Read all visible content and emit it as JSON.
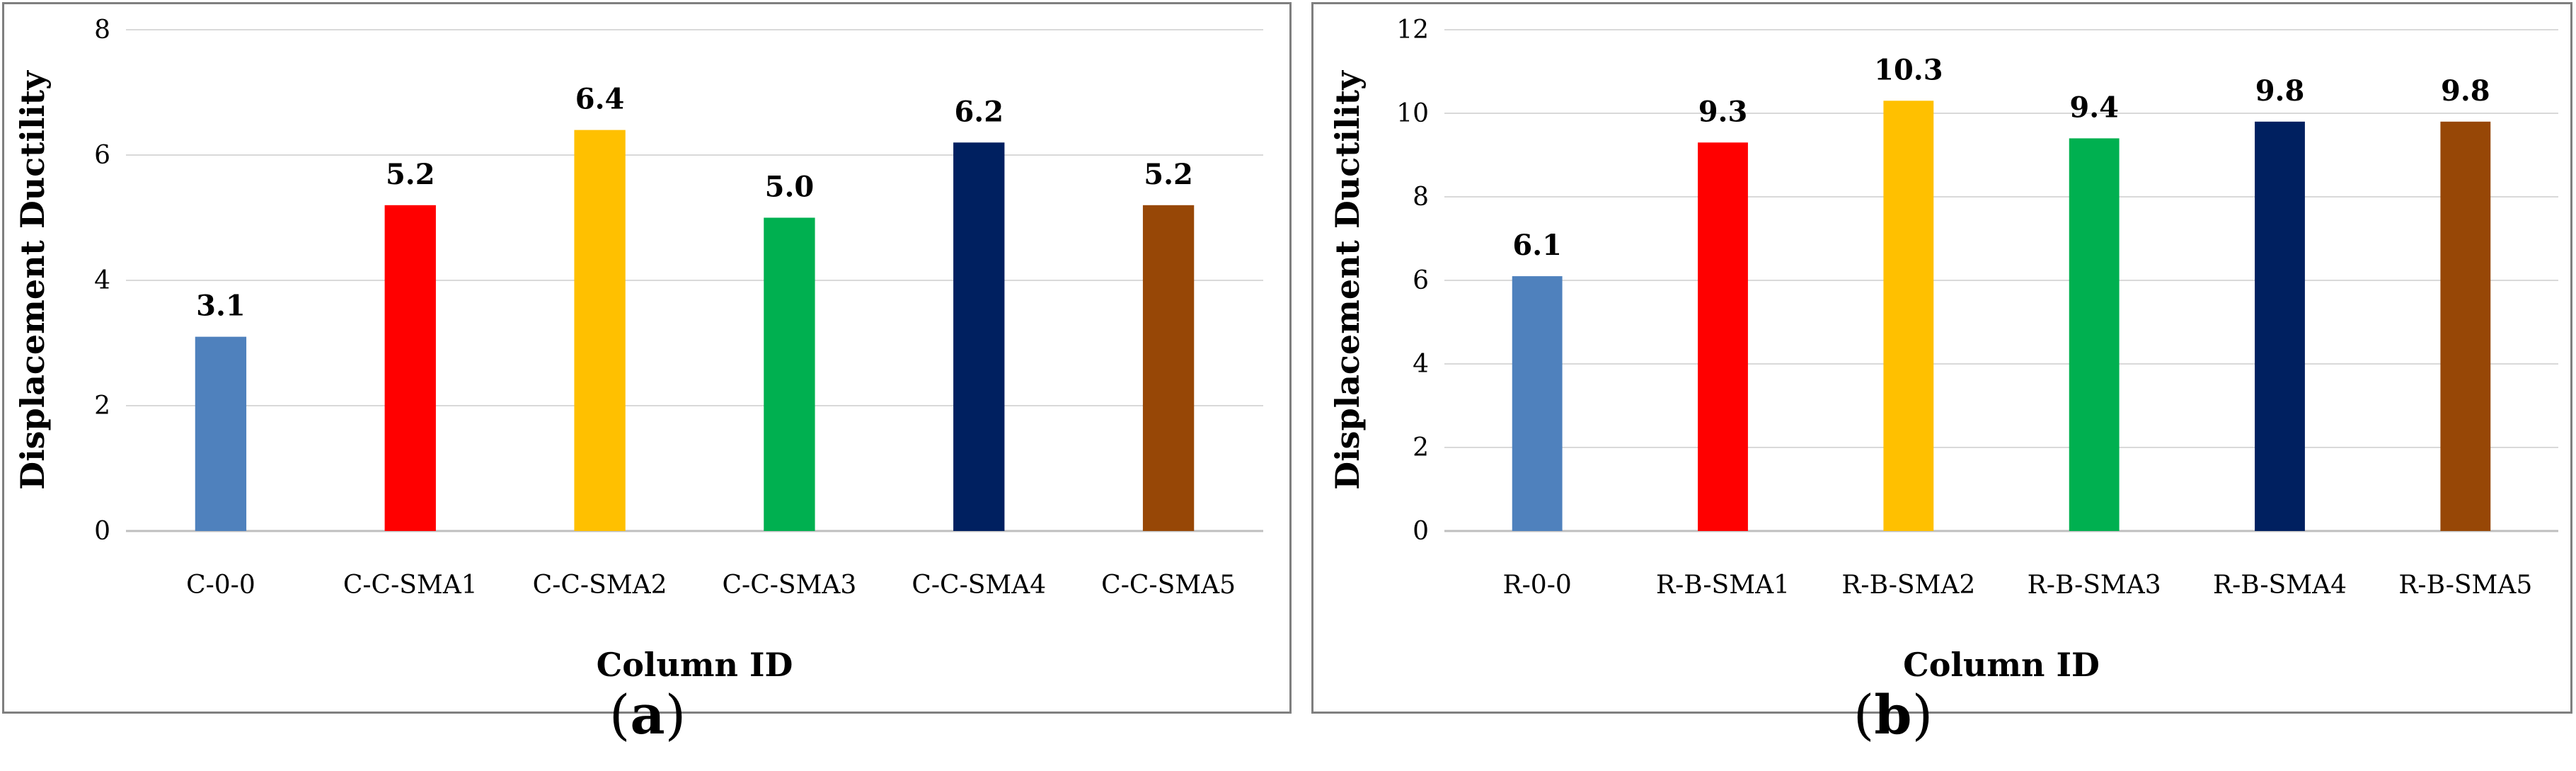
{
  "chart_data": [
    {
      "panel_label": "a",
      "type": "bar",
      "title": "",
      "xlabel": "Column ID",
      "ylabel": "Displacement Ductility",
      "ylim": [
        0,
        8
      ],
      "yticks": [
        0,
        2,
        4,
        6,
        8
      ],
      "grid": true,
      "categories": [
        "C-0-0",
        "C-C-SMA1",
        "C-C-SMA2",
        "C-C-SMA3",
        "C-C-SMA4",
        "C-C-SMA5"
      ],
      "values": [
        3.1,
        5.2,
        6.4,
        5.0,
        6.2,
        5.2
      ],
      "data_labels": [
        "3.1",
        "5.2",
        "6.4",
        "5.0",
        "6.2",
        "5.2"
      ],
      "colors": [
        "#4f81bd",
        "#ff0000",
        "#ffc000",
        "#00b050",
        "#002060",
        "#974706"
      ]
    },
    {
      "panel_label": "b",
      "type": "bar",
      "title": "",
      "xlabel": "Column ID",
      "ylabel": "Displacement Ductility",
      "ylim": [
        0,
        12
      ],
      "yticks": [
        0,
        2,
        4,
        6,
        8,
        10,
        12
      ],
      "grid": true,
      "categories": [
        "R-0-0",
        "R-B-SMA1",
        "R-B-SMA2",
        "R-B-SMA3",
        "R-B-SMA4",
        "R-B-SMA5"
      ],
      "values": [
        6.1,
        9.3,
        10.3,
        9.4,
        9.8,
        9.8
      ],
      "data_labels": [
        "6.1",
        "9.3",
        "10.3",
        "9.4",
        "9.8",
        "9.8"
      ],
      "colors": [
        "#4f81bd",
        "#ff0000",
        "#ffc000",
        "#00b050",
        "#002060",
        "#974706"
      ]
    }
  ]
}
